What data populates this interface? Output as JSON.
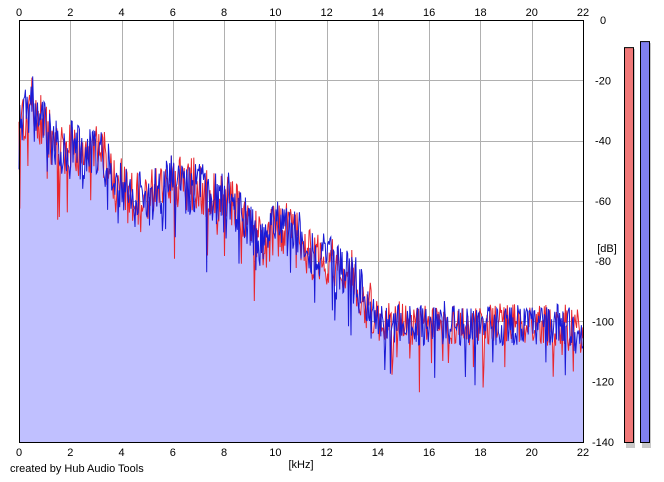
{
  "credit": "created by Hub Audio Tools",
  "colors": {
    "left_channel": "#e8262e",
    "right_channel": "#1a1ad6",
    "fill": "#c0c0ff",
    "grid": "#b0b0b0",
    "meter_left": "#f07878",
    "meter_right": "#8080f0"
  },
  "chart_data": {
    "type": "line",
    "title": "",
    "xlabel": "[kHz]",
    "ylabel": "[dB]",
    "xlim": [
      0,
      22
    ],
    "ylim": [
      -140,
      0
    ],
    "x_ticks": [
      0,
      2,
      4,
      6,
      8,
      10,
      12,
      14,
      16,
      18,
      20,
      22
    ],
    "x_tick_labels": [
      "0",
      "2",
      "4",
      "6",
      "8",
      "10",
      "12",
      "14",
      "16",
      "18",
      "20",
      "22"
    ],
    "y_ticks": [
      0,
      -20,
      -40,
      -60,
      -80,
      -100,
      -120,
      -140
    ],
    "y_tick_labels": [
      "0",
      "-20",
      "-40",
      "-60",
      "-80",
      "-100",
      "-120",
      "-140"
    ],
    "grid": true,
    "x": [
      0,
      0.5,
      1,
      1.5,
      2,
      2.5,
      3,
      3.5,
      4,
      4.5,
      5,
      5.5,
      6,
      6.5,
      7,
      7.5,
      8,
      8.5,
      9,
      9.5,
      10,
      10.5,
      11,
      11.5,
      12,
      12.5,
      13,
      13.5,
      14,
      14.5,
      15,
      15.5,
      16,
      16.5,
      17,
      17.5,
      18,
      18.5,
      19,
      19.5,
      20,
      20.5,
      21,
      21.5,
      22
    ],
    "series": [
      {
        "values": [
          -38,
          -28,
          -35,
          -44,
          -40,
          -46,
          -42,
          -48,
          -55,
          -60,
          -57,
          -57,
          -52,
          -55,
          -54,
          -60,
          -58,
          -61,
          -68,
          -75,
          -70,
          -69,
          -72,
          -79,
          -79,
          -81,
          -85,
          -93,
          -100,
          -101,
          -99,
          -102,
          -101,
          -101,
          -101,
          -102,
          -100,
          -101,
          -100,
          -101,
          -101,
          -101,
          -102,
          -101,
          -104
        ]
      },
      {
        "values": [
          -35,
          -27,
          -34,
          -43,
          -41,
          -45,
          -43,
          -49,
          -54,
          -60,
          -58,
          -57,
          -53,
          -56,
          -55,
          -60,
          -57,
          -62,
          -70,
          -74,
          -69,
          -70,
          -71,
          -78,
          -80,
          -82,
          -86,
          -92,
          -101,
          -102,
          -100,
          -101,
          -101,
          -100,
          -101,
          -101,
          -101,
          -102,
          -101,
          -101,
          -102,
          -101,
          -101,
          -102,
          -106
        ]
      }
    ]
  },
  "meters": [
    {
      "channel": "left",
      "level_db": -9
    },
    {
      "channel": "right",
      "level_db": -7
    }
  ]
}
